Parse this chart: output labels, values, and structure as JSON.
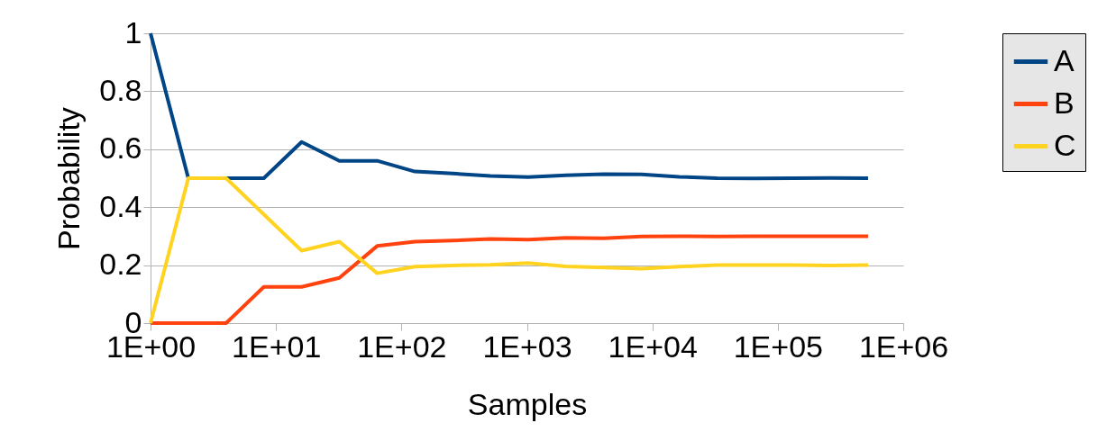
{
  "chart_data": {
    "type": "line",
    "xlabel": "Samples",
    "ylabel": "Probability",
    "x": [
      1,
      2,
      4,
      8,
      16,
      32,
      64,
      128,
      256,
      512,
      1024,
      2048,
      4096,
      8192,
      16384,
      32768,
      65536,
      131072,
      262144,
      524288
    ],
    "series": [
      {
        "name": "A",
        "color": "#004586",
        "values": [
          1,
          0.5,
          0.5,
          0.5,
          0.625,
          0.56,
          0.56,
          0.523,
          0.516,
          0.508,
          0.504,
          0.51,
          0.514,
          0.513,
          0.505,
          0.5,
          0.499,
          0.5,
          0.501,
          0.5
        ]
      },
      {
        "name": "B",
        "color": "#ff420e",
        "values": [
          0,
          0,
          0,
          0.125,
          0.125,
          0.156,
          0.266,
          0.281,
          0.285,
          0.29,
          0.288,
          0.294,
          0.293,
          0.299,
          0.3,
          0.299,
          0.3,
          0.3,
          0.3,
          0.3
        ]
      },
      {
        "name": "C",
        "color": "#ffd320",
        "values": [
          0,
          0.5,
          0.5,
          0.375,
          0.25,
          0.281,
          0.172,
          0.195,
          0.199,
          0.201,
          0.207,
          0.196,
          0.192,
          0.188,
          0.195,
          0.2,
          0.2,
          0.2,
          0.199,
          0.2
        ]
      }
    ],
    "log": "x",
    "xlim": [
      1,
      1000000
    ],
    "xticks": [
      {
        "value": 1,
        "label": "1E+00"
      },
      {
        "value": 10,
        "label": "1E+01"
      },
      {
        "value": 100,
        "label": "1E+02"
      },
      {
        "value": 1000,
        "label": "1E+03"
      },
      {
        "value": 10000,
        "label": "1E+04"
      },
      {
        "value": 100000,
        "label": "1E+05"
      },
      {
        "value": 1000000,
        "label": "1E+06"
      }
    ],
    "ylim": [
      0,
      1
    ],
    "yticks": [
      0,
      0.2,
      0.4,
      0.6,
      0.8,
      1
    ],
    "grid": "y",
    "legend": "right",
    "marker": "none",
    "line_style": "solid"
  }
}
